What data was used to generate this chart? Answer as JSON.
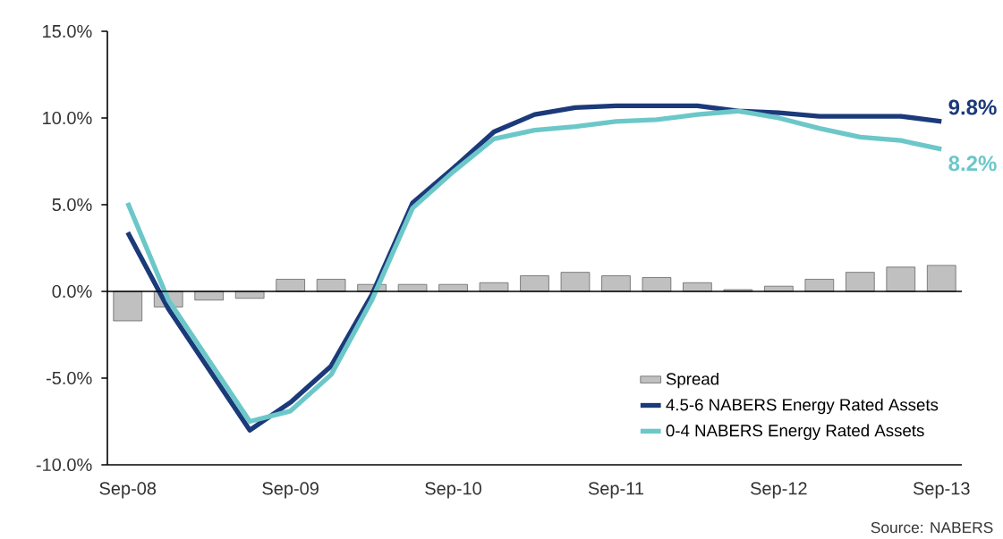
{
  "chart_data": {
    "type": "line",
    "categories": [
      "Sep-08",
      null,
      null,
      null,
      "Sep-09",
      null,
      null,
      null,
      "Sep-10",
      null,
      null,
      null,
      "Sep-11",
      null,
      null,
      null,
      "Sep-12",
      null,
      null,
      null,
      "Sep-13"
    ],
    "series": [
      {
        "name": "Spread",
        "type": "bar",
        "color": "#c0c0c0",
        "values": [
          -1.7,
          -0.9,
          -0.5,
          -0.4,
          0.7,
          0.7,
          0.4,
          0.4,
          0.4,
          0.5,
          0.9,
          1.1,
          0.9,
          0.8,
          0.5,
          0.1,
          0.3,
          0.7,
          1.1,
          1.4,
          1.5
        ]
      },
      {
        "name": "4.5-6 NABERS Energy Rated Assets",
        "color": "#1b3a7a",
        "values": [
          3.4,
          -1.0,
          -4.5,
          -8.0,
          -6.4,
          -4.3,
          -0.2,
          5.1,
          7.1,
          9.2,
          10.2,
          10.6,
          10.7,
          10.7,
          10.7,
          10.4,
          10.3,
          10.1,
          10.1,
          10.1,
          9.8
        ]
      },
      {
        "name": "0-4 NABERS Energy Rated Assets",
        "color": "#6cc7c9",
        "values": [
          5.1,
          -0.5,
          -4.0,
          -7.5,
          -6.9,
          -4.8,
          -0.5,
          4.8,
          6.9,
          8.8,
          9.3,
          9.5,
          9.8,
          9.9,
          10.2,
          10.4,
          10.0,
          9.4,
          8.9,
          8.7,
          8.2
        ]
      }
    ],
    "ylim": [
      -10,
      15
    ],
    "yticks": [
      {
        "value": -10,
        "label": "-10.0%"
      },
      {
        "value": -5,
        "label": "-5.0%"
      },
      {
        "value": 0,
        "label": "0.0%"
      },
      {
        "value": 5,
        "label": "5.0%"
      },
      {
        "value": 10,
        "label": "10.0%"
      },
      {
        "value": 15,
        "label": "15.0%"
      }
    ],
    "legend": "bottom right",
    "marker": "none",
    "line_style": "solid",
    "annotations": [
      {
        "text": "9.8%",
        "x": "Sep-13",
        "y": 9.8
      },
      {
        "text": "8.2%",
        "x": "Sep-13",
        "y": 8.2
      },
      "Source: NABERS"
    ]
  }
}
